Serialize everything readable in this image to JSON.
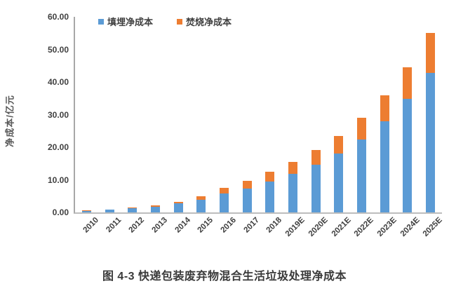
{
  "chart_data": {
    "type": "bar",
    "stacked": true,
    "caption": "图 4-3 快递包装废弃物混合生活垃圾处理净成本",
    "ylabel": "净成本/亿元",
    "xlabel": "",
    "categories": [
      "2010",
      "2011",
      "2012",
      "2013",
      "2014",
      "2015",
      "2016",
      "2017",
      "2018",
      "2019E",
      "2020E",
      "2021E",
      "2022E",
      "2023E",
      "2024E",
      "2025E"
    ],
    "series": [
      {
        "name": "填埋净成本",
        "color": "#5B9BD5",
        "values": [
          0.5,
          0.85,
          1.25,
          1.8,
          2.7,
          3.9,
          5.9,
          7.4,
          9.5,
          11.8,
          14.6,
          18.0,
          22.4,
          27.9,
          34.9,
          42.9
        ]
      },
      {
        "name": "焚烧净成本",
        "color": "#ED7D31",
        "values": [
          0.05,
          0.1,
          0.2,
          0.45,
          0.6,
          1.0,
          1.7,
          2.3,
          2.9,
          3.6,
          4.5,
          5.5,
          6.7,
          8.1,
          9.7,
          12.1
        ]
      }
    ],
    "ylim": [
      0,
      60
    ],
    "ytick_step": 10,
    "yticks": [
      "60.00",
      "50.00",
      "40.00",
      "30.00",
      "20.00",
      "10.00",
      "0.00"
    ],
    "legend_position": "top-left",
    "grid": false
  },
  "colors": {
    "axis_line": "#a8a8a8",
    "tick_text": "#404040",
    "axis_title_text": "#595959",
    "caption_text": "#3a3a3a",
    "background": "#ffffff"
  }
}
